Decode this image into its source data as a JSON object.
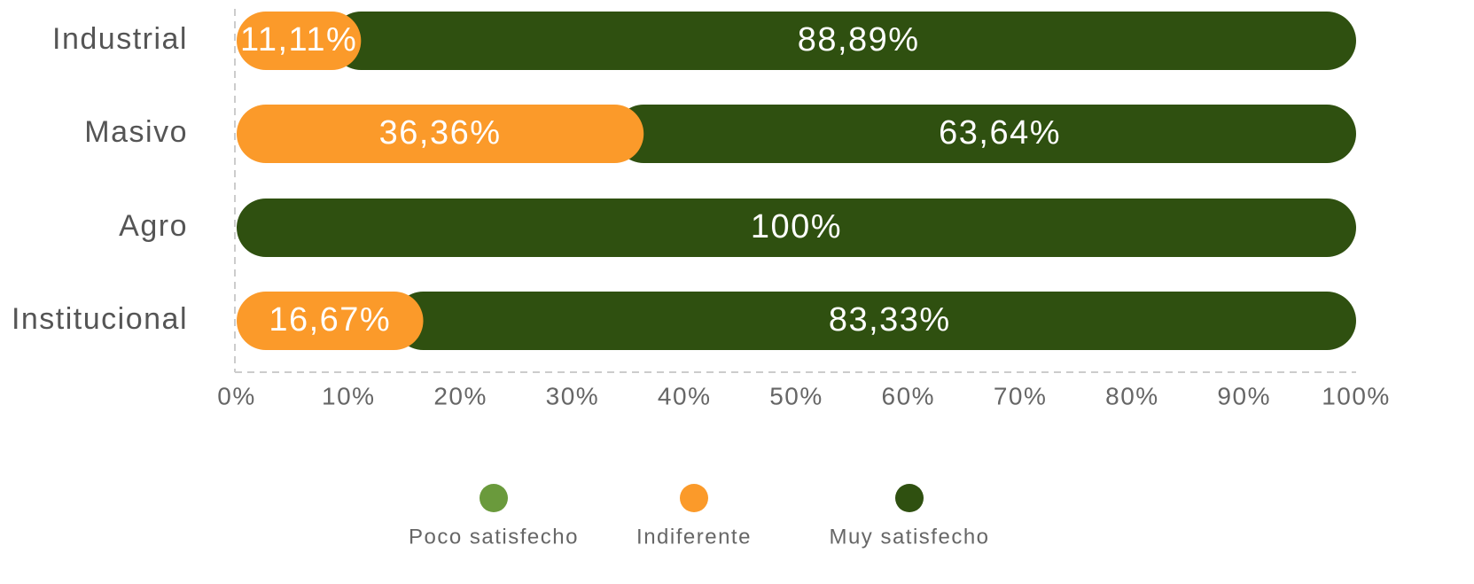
{
  "chart_data": {
    "type": "stacked_barh",
    "categories": [
      "Industrial",
      "Masivo",
      "Agro",
      "Institucional"
    ],
    "series": [
      {
        "name": "Poco satisfecho",
        "color": "#6a9a3c",
        "values": [
          0,
          0,
          0,
          0
        ]
      },
      {
        "name": "Indiferente",
        "color": "#fb9a2a",
        "values": [
          11.11,
          36.36,
          0,
          16.67
        ],
        "value_labels": [
          "11,11%",
          "36,36%",
          null,
          "16,67%"
        ]
      },
      {
        "name": "Muy satisfecho",
        "color": "#2f5010",
        "values": [
          88.89,
          63.64,
          100,
          83.33
        ],
        "value_labels": [
          "88,89%",
          "63,64%",
          "100%",
          "83,33%"
        ]
      }
    ],
    "xlim": [
      0,
      100
    ],
    "xticks": [
      {
        "value": 0,
        "label": "0%"
      },
      {
        "value": 10,
        "label": "10%"
      },
      {
        "value": 20,
        "label": "20%"
      },
      {
        "value": 30,
        "label": "30%"
      },
      {
        "value": 40,
        "label": "40%"
      },
      {
        "value": 50,
        "label": "50%"
      },
      {
        "value": 60,
        "label": "60%"
      },
      {
        "value": 70,
        "label": "70%"
      },
      {
        "value": 80,
        "label": "80%"
      },
      {
        "value": 90,
        "label": "90%"
      },
      {
        "value": 100,
        "label": "100%"
      }
    ],
    "legend": "bottom"
  }
}
